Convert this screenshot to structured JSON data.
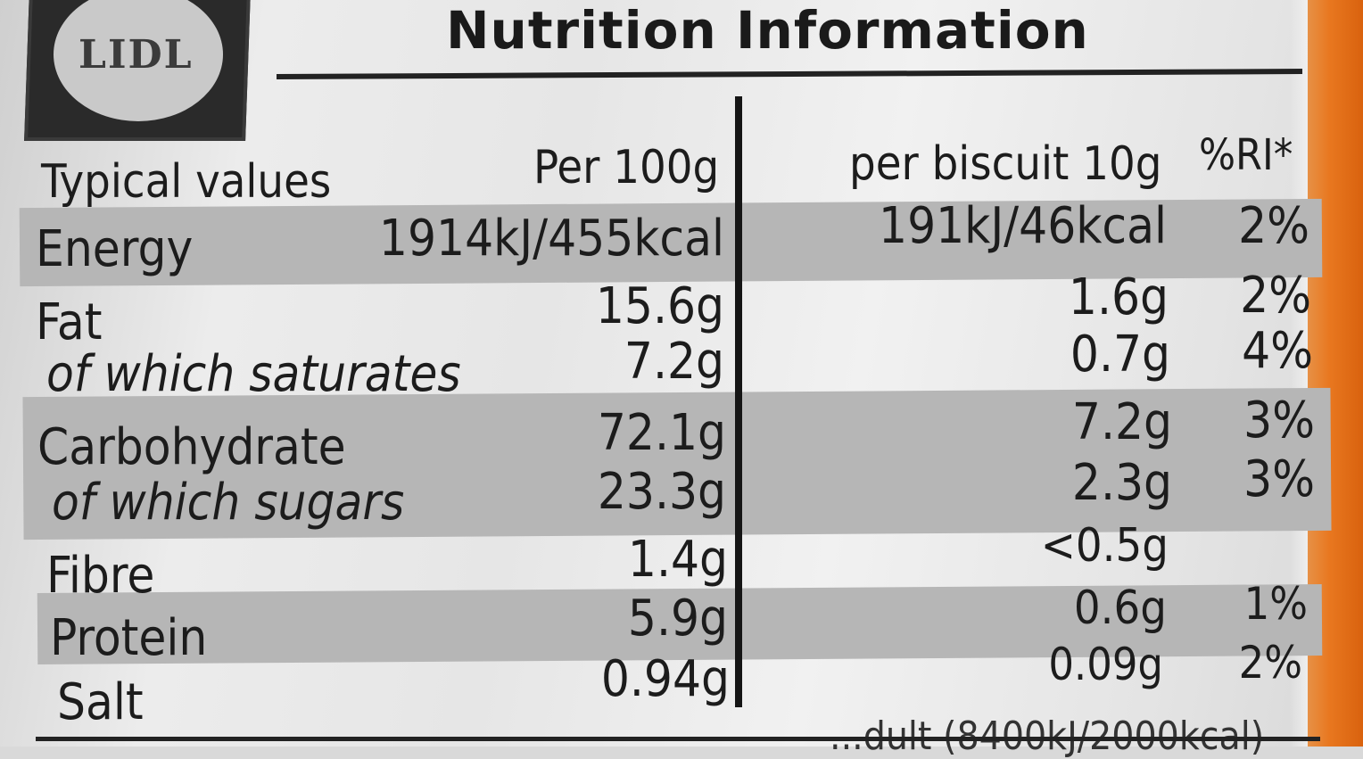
{
  "title": "Nutrition Information",
  "logo": {
    "text": "LIDL"
  },
  "header": {
    "typical_values": "Typical values",
    "per100": "Per 100g",
    "per_biscuit": "per biscuit 10g",
    "ri": "%RI*"
  },
  "rows": [
    {
      "name": "Energy",
      "per100": "1914kJ/455kcal",
      "per_biscuit": "191kJ/46kcal",
      "ri": "2%"
    },
    {
      "name": "Fat",
      "per100": "15.6g",
      "per_biscuit": "1.6g",
      "ri": "2%"
    },
    {
      "name": "of which saturates",
      "per100": "7.2g",
      "per_biscuit": "0.7g",
      "ri": "4%"
    },
    {
      "name": "Carbohydrate",
      "per100": "72.1g",
      "per_biscuit": "7.2g",
      "ri": "3%"
    },
    {
      "name": "of which sugars",
      "per100": "23.3g",
      "per_biscuit": "2.3g",
      "ri": "3%"
    },
    {
      "name": "Fibre",
      "per100": "1.4g",
      "per_biscuit": "<0.5g",
      "ri": ""
    },
    {
      "name": "Protein",
      "per100": "5.9g",
      "per_biscuit": "0.6g",
      "ri": "1%"
    },
    {
      "name": "Salt",
      "per100": "0.94g",
      "per_biscuit": "0.09g",
      "ri": "2%"
    }
  ],
  "footnote": "...dult (8400kJ/2000kcal)"
}
